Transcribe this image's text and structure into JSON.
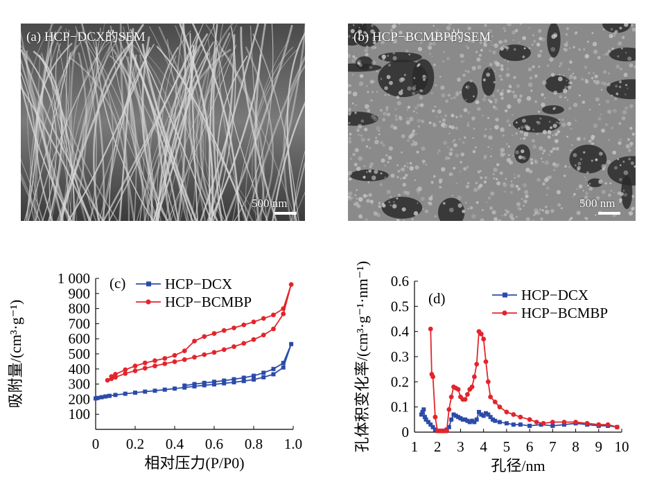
{
  "panels": {
    "a": {
      "label": "(a)  HCP−DCX的SEM",
      "scale_bar": "500 nm"
    },
    "b": {
      "label": "(b)  HCP−BCMBP的SEM",
      "scale_bar": "500 nm"
    }
  },
  "colors": {
    "dcx": "#2b4ba8",
    "bcmbp": "#e3242b"
  },
  "chart_data": [
    {
      "id": "c",
      "type": "line",
      "panel_label": "(c)",
      "xlabel": "相对压力(P/P0)",
      "ylabel": "吸附量/(cm³·g⁻¹)",
      "xlim": [
        0,
        1.0
      ],
      "ylim": [
        0,
        1000
      ],
      "x_ticks": [
        "0",
        "0.2",
        "0.4",
        "0.6",
        "0.8",
        "1.0"
      ],
      "y_ticks": [
        "100",
        "200",
        "300",
        "400",
        "500",
        "600",
        "700",
        "800",
        "900",
        "1 000"
      ],
      "legend_position": "top-left",
      "series": [
        {
          "name": "HCP−DCX",
          "color": "#2b4ba8",
          "marker": "square",
          "x": [
            0.0,
            0.01,
            0.03,
            0.05,
            0.07,
            0.1,
            0.15,
            0.2,
            0.25,
            0.3,
            0.35,
            0.4,
            0.45,
            0.5,
            0.55,
            0.6,
            0.65,
            0.7,
            0.75,
            0.8,
            0.85,
            0.9,
            0.95,
            0.99,
            0.95,
            0.9,
            0.85,
            0.8,
            0.75,
            0.7,
            0.65,
            0.6,
            0.55,
            0.5,
            0.45
          ],
          "y": [
            205,
            208,
            213,
            218,
            222,
            228,
            236,
            243,
            250,
            256,
            263,
            270,
            277,
            285,
            292,
            298,
            305,
            312,
            320,
            330,
            345,
            365,
            410,
            565,
            440,
            400,
            375,
            355,
            342,
            332,
            323,
            315,
            308,
            300,
            290
          ]
        },
        {
          "name": "HCP−BCMBP",
          "color": "#e3242b",
          "marker": "circle",
          "x": [
            0.06,
            0.08,
            0.1,
            0.15,
            0.2,
            0.25,
            0.3,
            0.35,
            0.4,
            0.45,
            0.5,
            0.55,
            0.6,
            0.65,
            0.7,
            0.75,
            0.8,
            0.85,
            0.9,
            0.95,
            0.99,
            0.95,
            0.9,
            0.85,
            0.8,
            0.75,
            0.7,
            0.65,
            0.6,
            0.55,
            0.5,
            0.45,
            0.4,
            0.35,
            0.3,
            0.25,
            0.2,
            0.15,
            0.1,
            0.08
          ],
          "y": [
            325,
            335,
            345,
            370,
            388,
            405,
            420,
            435,
            448,
            462,
            478,
            495,
            510,
            528,
            548,
            570,
            595,
            625,
            665,
            765,
            960,
            800,
            758,
            735,
            712,
            692,
            672,
            655,
            635,
            615,
            585,
            520,
            490,
            470,
            455,
            440,
            420,
            395,
            365,
            350
          ]
        }
      ]
    },
    {
      "id": "d",
      "type": "line",
      "panel_label": "(d)",
      "xlabel": "孔径/nm",
      "ylabel": "孔体积变化率/(cm³·g⁻¹·nm⁻¹)",
      "xlim": [
        1,
        10
      ],
      "ylim": [
        0,
        0.6
      ],
      "x_ticks": [
        "1",
        "2",
        "3",
        "4",
        "5",
        "6",
        "7",
        "8",
        "9",
        "10"
      ],
      "y_ticks": [
        "0",
        "0.1",
        "0.2",
        "0.3",
        "0.4",
        "0.5",
        "0.6"
      ],
      "legend_position": "top-right",
      "series": [
        {
          "name": "HCP−DCX",
          "color": "#2b4ba8",
          "marker": "square",
          "x": [
            1.3,
            1.35,
            1.4,
            1.45,
            1.5,
            1.6,
            1.7,
            1.8,
            1.9,
            2.0,
            2.1,
            2.2,
            2.3,
            2.4,
            2.5,
            2.6,
            2.7,
            2.8,
            2.9,
            3.0,
            3.1,
            3.2,
            3.3,
            3.4,
            3.5,
            3.6,
            3.7,
            3.8,
            3.9,
            4.0,
            4.1,
            4.2,
            4.3,
            4.4,
            4.5,
            4.7,
            5.0,
            5.3,
            5.6,
            6.0,
            6.5,
            7.0,
            7.5,
            8.0,
            8.5,
            9.0,
            9.4,
            9.8
          ],
          "y": [
            0.07,
            0.08,
            0.09,
            0.06,
            0.05,
            0.04,
            0.03,
            0.02,
            0.01,
            0.005,
            0.005,
            0.005,
            0.005,
            0.01,
            0.02,
            0.05,
            0.07,
            0.065,
            0.06,
            0.055,
            0.05,
            0.05,
            0.045,
            0.04,
            0.045,
            0.04,
            0.05,
            0.08,
            0.07,
            0.065,
            0.075,
            0.07,
            0.06,
            0.05,
            0.045,
            0.04,
            0.035,
            0.03,
            0.03,
            0.025,
            0.03,
            0.025,
            0.03,
            0.035,
            0.03,
            0.025,
            0.025,
            0.02
          ]
        },
        {
          "name": "HCP−BCMBP",
          "color": "#e3242b",
          "marker": "circle",
          "x": [
            1.7,
            1.75,
            1.8,
            1.9,
            2.0,
            2.1,
            2.2,
            2.3,
            2.4,
            2.5,
            2.6,
            2.7,
            2.8,
            2.9,
            3.0,
            3.1,
            3.2,
            3.3,
            3.4,
            3.5,
            3.6,
            3.7,
            3.8,
            3.9,
            4.0,
            4.1,
            4.2,
            4.3,
            4.5,
            4.7,
            5.0,
            5.3,
            5.6,
            6.0,
            6.3,
            6.6,
            7.0,
            7.5,
            8.0,
            8.5,
            9.0,
            9.4,
            9.8
          ],
          "y": [
            0.41,
            0.23,
            0.22,
            0.06,
            0.005,
            0.005,
            0.005,
            0.005,
            0.005,
            0.09,
            0.14,
            0.18,
            0.175,
            0.17,
            0.14,
            0.13,
            0.13,
            0.15,
            0.17,
            0.18,
            0.22,
            0.27,
            0.4,
            0.39,
            0.37,
            0.28,
            0.2,
            0.14,
            0.12,
            0.1,
            0.08,
            0.07,
            0.06,
            0.05,
            0.04,
            0.035,
            0.04,
            0.04,
            0.04,
            0.035,
            0.03,
            0.03,
            0.02
          ]
        }
      ]
    }
  ]
}
